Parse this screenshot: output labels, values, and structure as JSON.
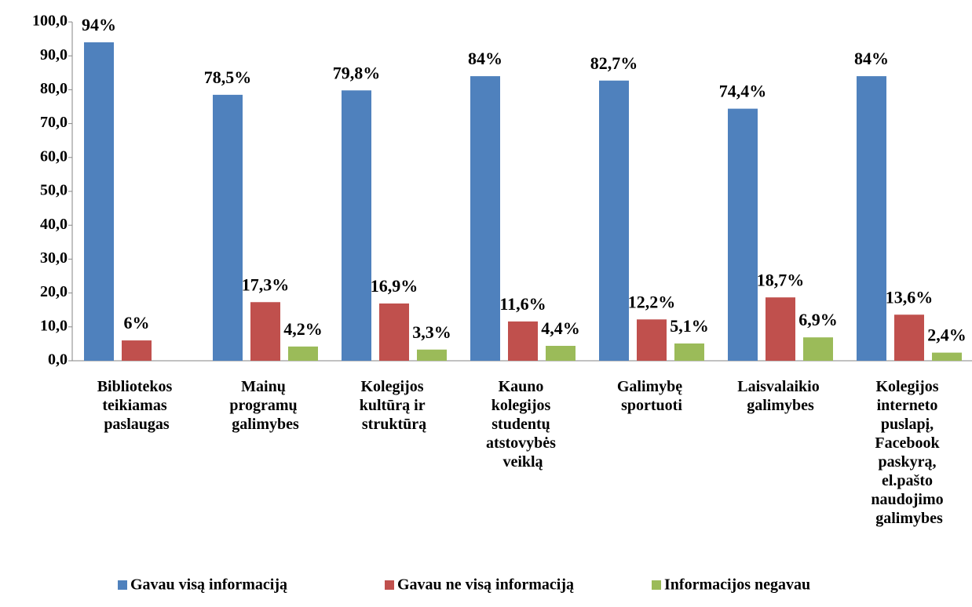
{
  "chart_data": {
    "type": "bar",
    "categories": [
      "Bibliotekos teikiamas paslaugas",
      "Mainų programų galimybes",
      "Kolegijos kultūrą ir struktūrą",
      "Kauno kolegijos studentų atstovybės veiklą",
      "Galimybę sportuoti",
      "Laisvalaikio galimybes",
      "Kolegijos interneto puslapį, Facebook paskyrą, el.pašto naudojimo galimybes"
    ],
    "series": [
      {
        "name": "Gavau visą informaciją",
        "color": "#4f81bd",
        "values": [
          94,
          78.5,
          79.8,
          84,
          82.7,
          74.4,
          84
        ],
        "value_labels": [
          "94%",
          "78,5%",
          "79,8%",
          "84%",
          "82,7%",
          "74,4%",
          "84%"
        ]
      },
      {
        "name": "Gavau ne visą informaciją",
        "color": "#c0504d",
        "values": [
          6,
          17.3,
          16.9,
          11.6,
          12.2,
          18.7,
          13.6
        ],
        "value_labels": [
          "6%",
          "17,3%",
          "16,9%",
          "11,6%",
          "12,2%",
          "18,7%",
          "13,6%"
        ]
      },
      {
        "name": "Informacijos negavau",
        "color": "#9bbb59",
        "values": [
          null,
          4.2,
          3.3,
          4.4,
          5.1,
          6.9,
          2.4
        ],
        "value_labels": [
          null,
          "4,2%",
          "3,3%",
          "4,4%",
          "5,1%",
          "6,9%",
          "2,4%"
        ]
      }
    ],
    "ylim": [
      0,
      100
    ],
    "yticks": [
      {
        "value": 0,
        "label": "0,0"
      },
      {
        "value": 10,
        "label": "10,0"
      },
      {
        "value": 20,
        "label": "20,0"
      },
      {
        "value": 30,
        "label": "30,0"
      },
      {
        "value": 40,
        "label": "40,0"
      },
      {
        "value": 50,
        "label": "50,0"
      },
      {
        "value": 60,
        "label": "60,0"
      },
      {
        "value": 70,
        "label": "70,0"
      },
      {
        "value": 80,
        "label": "80,0"
      },
      {
        "value": 90,
        "label": "90,0"
      },
      {
        "value": 100,
        "label": "100,0"
      }
    ],
    "legend": "bottom"
  }
}
